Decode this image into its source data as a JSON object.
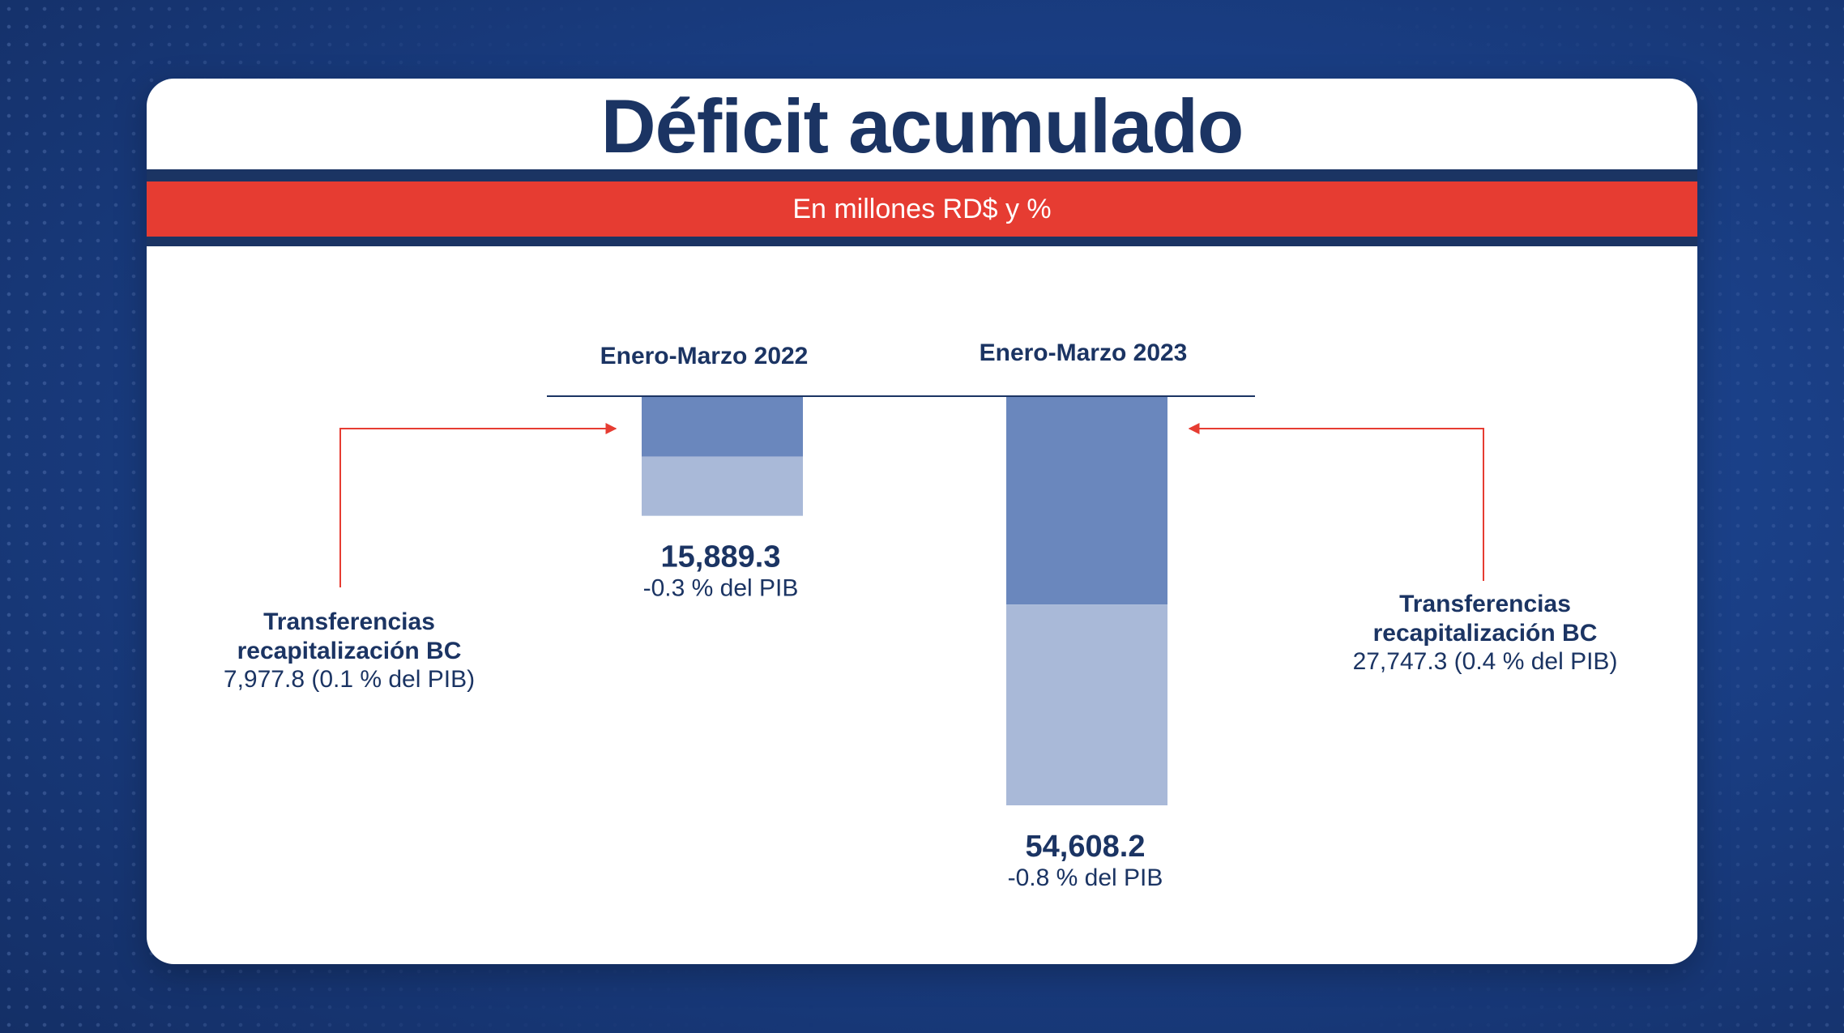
{
  "title": "Déficit acumulado",
  "subtitle": "En millones RD$ y %",
  "colors": {
    "navy": "#1b3463",
    "red": "#e63c32",
    "bar_dark": "#6a87bd",
    "bar_light": "#a9b9d8"
  },
  "chart_data": {
    "type": "bar",
    "orientation": "downward-stacked",
    "categories": [
      "Enero-Marzo 2022",
      "Enero-Marzo 2023"
    ],
    "totals": [
      15889.3,
      54608.2
    ],
    "total_labels": [
      "15,889.3",
      "54,608.2"
    ],
    "pib_labels": [
      "-0.3 % del PIB",
      "-0.8 % del PIB"
    ],
    "series": [
      {
        "name": "Transferencias recapitalización BC",
        "values": [
          7977.8,
          27747.3
        ]
      },
      {
        "values": [
          7911.5,
          26860.9
        ]
      }
    ],
    "annotations": [
      {
        "title_line1": "Transferencias",
        "title_line2": "recapitalización BC",
        "detail": "7,977.8 (0.1 % del PIB)"
      },
      {
        "title_line1": "Transferencias",
        "title_line2": "recapitalización BC",
        "detail": "27,747.3 (0.4 % del PIB)"
      }
    ]
  }
}
